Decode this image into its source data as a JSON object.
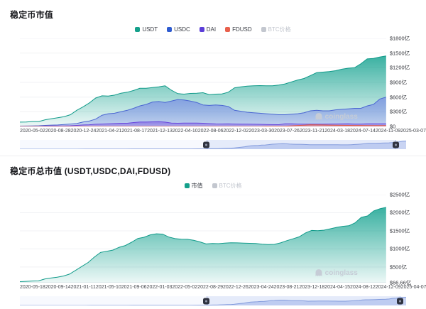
{
  "watermark": {
    "text": "coinglass"
  },
  "chart_data": [
    {
      "type": "area",
      "title": "稳定币市值",
      "legend": [
        {
          "label": "USDT",
          "color": "#15a08b",
          "muted": false
        },
        {
          "label": "USDC",
          "color": "#2e5bd0",
          "muted": false
        },
        {
          "label": "DAI",
          "color": "#5b3dd8",
          "muted": false
        },
        {
          "label": "FDUSD",
          "color": "#e8604c",
          "muted": false
        },
        {
          "label": "BTC价格",
          "color": "#c3c7cf",
          "muted": true
        }
      ],
      "ylim": [
        0,
        1800
      ],
      "y_ticks": [
        {
          "label": "$1800亿",
          "value": 1800
        },
        {
          "label": "$1500亿",
          "value": 1500
        },
        {
          "label": "$1200亿",
          "value": 1200
        },
        {
          "label": "$900亿",
          "value": 900
        },
        {
          "label": "$600亿",
          "value": 600
        },
        {
          "label": "$300亿",
          "value": 300
        },
        {
          "label": "$0",
          "value": 0
        }
      ],
      "x_ticks": [
        "2020-05-02",
        "2020-08-28",
        "2020-12-24",
        "2021-04-21",
        "2021-08-17",
        "2021-12-13",
        "2022-04-10",
        "2022-08-06",
        "2022-12-02",
        "2023-03-30",
        "2023-07-26",
        "2023-11-21",
        "2024-03-18",
        "2024-07-14",
        "2024-11-09",
        "2025-03-07"
      ],
      "window": {
        "start": 0.484,
        "end": 0.975
      },
      "series": [
        {
          "name": "USDT",
          "color": "#0f9a89",
          "fill": "#17a391",
          "fill_opacity": [
            0.85,
            0.08
          ],
          "values": [
            88,
            92,
            100,
            100,
            137,
            158,
            178,
            200,
            240,
            330,
            400,
            480,
            580,
            625,
            620,
            640,
            680,
            700,
            735,
            780,
            780,
            795,
            810,
            830,
            740,
            670,
            660,
            675,
            680,
            690,
            650,
            660,
            665,
            700,
            790,
            810,
            825,
            830,
            835,
            830,
            830,
            845,
            870,
            910,
            950,
            980,
            1040,
            1100,
            1110,
            1120,
            1140,
            1170,
            1190,
            1200,
            1280,
            1380,
            1390,
            1420,
            1440
          ]
        },
        {
          "name": "USDC",
          "color": "#4a66d2",
          "fill": "#7b90e4",
          "fill_opacity": [
            0.8,
            0.35
          ],
          "values": [
            7,
            9,
            11,
            14,
            22,
            28,
            30,
            39,
            50,
            60,
            90,
            110,
            150,
            230,
            260,
            270,
            300,
            330,
            370,
            420,
            450,
            500,
            510,
            490,
            520,
            550,
            540,
            520,
            490,
            440,
            430,
            440,
            430,
            410,
            330,
            310,
            290,
            280,
            270,
            260,
            250,
            240,
            240,
            250,
            260,
            280,
            320,
            330,
            320,
            320,
            340,
            350,
            360,
            370,
            370,
            420,
            450,
            560,
            600
          ]
        },
        {
          "name": "DAI",
          "color": "#6847dd",
          "fill": "#8266e2",
          "fill_opacity": [
            0.75,
            0.4
          ],
          "values": [
            1,
            2,
            2,
            4,
            9,
            10,
            10,
            12,
            15,
            22,
            30,
            35,
            45,
            50,
            55,
            60,
            65,
            65,
            80,
            90,
            92,
            95,
            98,
            88,
            68,
            65,
            68,
            70,
            68,
            65,
            58,
            52,
            51,
            52,
            49,
            47,
            46,
            45,
            44,
            39,
            38,
            37,
            53,
            53,
            49,
            48,
            48,
            47,
            46,
            50,
            51,
            52,
            53,
            50,
            50,
            53,
            53,
            53,
            53
          ]
        },
        {
          "name": "FDUSD",
          "color": "#e25b47",
          "fill": "#ec8372",
          "fill_opacity": [
            0.8,
            0.45
          ],
          "values": [
            0,
            0,
            0,
            0,
            0,
            0,
            0,
            0,
            0,
            0,
            0,
            0,
            0,
            0,
            0,
            0,
            0,
            0,
            0,
            0,
            0,
            0,
            0,
            0,
            0,
            0,
            0,
            0,
            0,
            0,
            0,
            0,
            0,
            0,
            0,
            0,
            0,
            0,
            0,
            3,
            4,
            4,
            5,
            13,
            20,
            26,
            35,
            33,
            30,
            28,
            25,
            23,
            22,
            21,
            20,
            19,
            18,
            17,
            17
          ]
        }
      ]
    },
    {
      "type": "area",
      "title": "稳定币总市值 (USDT,USDC,DAI,FDUSD)",
      "legend": [
        {
          "label": "市值",
          "color": "#15a08b",
          "muted": false
        },
        {
          "label": "BTC价格",
          "color": "#c3c7cf",
          "muted": true
        }
      ],
      "ylim": [
        66.66,
        2500
      ],
      "y_ticks": [
        {
          "label": "$2500亿",
          "value": 2500
        },
        {
          "label": "$2000亿",
          "value": 2000
        },
        {
          "label": "$1500亿",
          "value": 1500
        },
        {
          "label": "$1000亿",
          "value": 1000
        },
        {
          "label": "$500亿",
          "value": 500
        },
        {
          "label": "$66.66亿",
          "value": 66.66
        }
      ],
      "x_ticks": [
        "2020-05-18",
        "2020-09-14",
        "2021-01-11",
        "2021-05-10",
        "2021-09-06",
        "2022-01-03",
        "2022-05-02",
        "2022-08-29",
        "2022-12-26",
        "2023-04-24",
        "2023-08-21",
        "2023-12-18",
        "2024-04-15",
        "2024-08-12",
        "2024-12-09",
        "2025-04-07"
      ],
      "window": {
        "start": 0.484,
        "end": 0.985
      },
      "series": [
        {
          "name": "市值",
          "color": "#0f9a89",
          "fill": "#17a391",
          "fill_opacity": [
            0.85,
            0.08
          ],
          "values": [
            96,
            103,
            113,
            118,
            168,
            196,
            218,
            251,
            305,
            412,
            520,
            625,
            775,
            905,
            935,
            970,
            1045,
            1095,
            1185,
            1290,
            1322,
            1390,
            1418,
            1408,
            1328,
            1285,
            1268,
            1265,
            1238,
            1195,
            1138,
            1152,
            1146,
            1162,
            1169,
            1168,
            1161,
            1155,
            1149,
            1132,
            1122,
            1126,
            1168,
            1229,
            1279,
            1334,
            1443,
            1510,
            1506,
            1518,
            1556,
            1595,
            1625,
            1641,
            1720,
            1872,
            1911,
            2050,
            2110,
            2150
          ]
        }
      ]
    }
  ]
}
